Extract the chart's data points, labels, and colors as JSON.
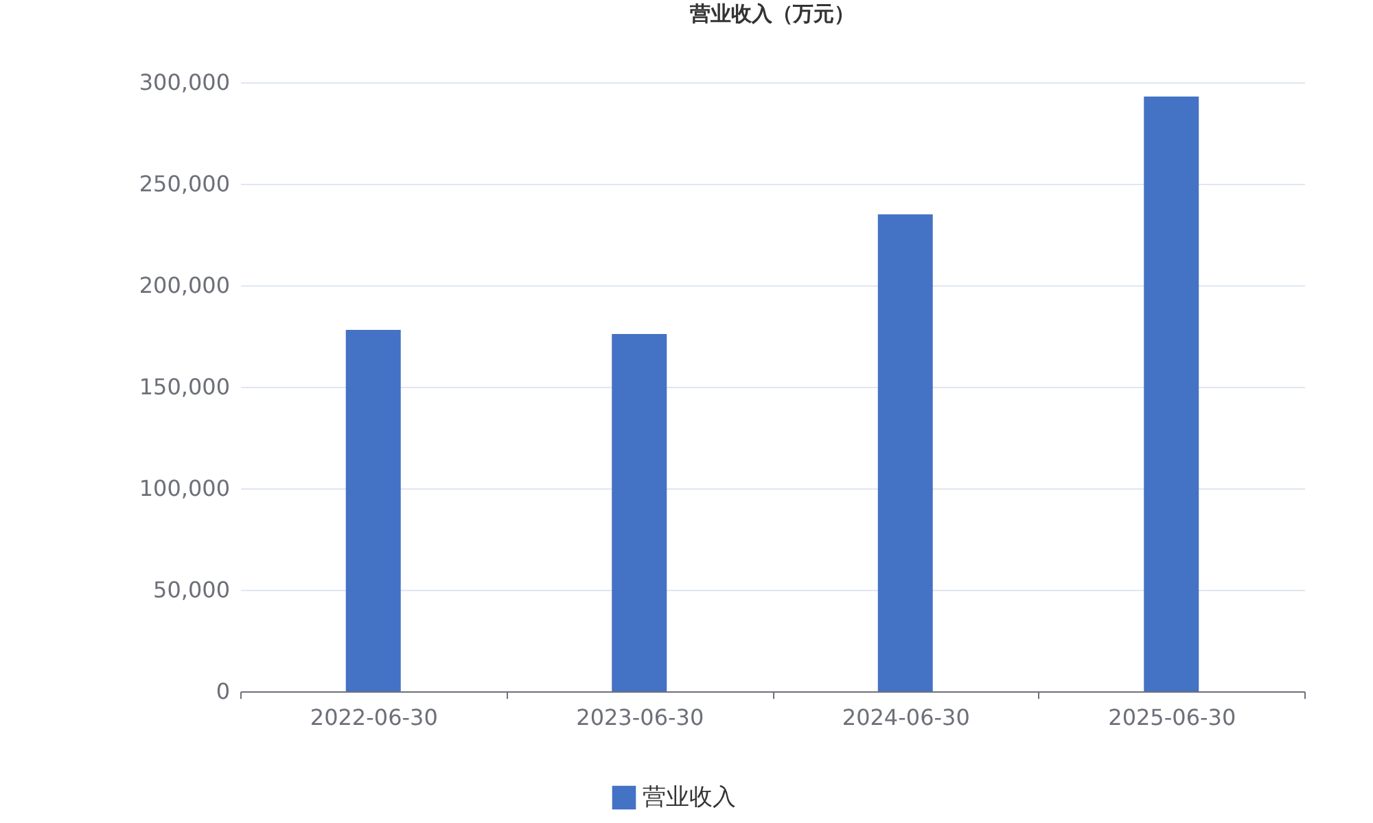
{
  "chart_data": {
    "type": "bar",
    "title": "营业收入（万元）",
    "categories": [
      "2022-06-30",
      "2023-06-30",
      "2024-06-30",
      "2025-06-30"
    ],
    "series": [
      {
        "name": "营业收入",
        "color": "#4472c4",
        "values": [
          178000,
          176000,
          235000,
          293000
        ]
      }
    ],
    "ylim": [
      0,
      300000
    ],
    "yticks": [
      0,
      {
        "value": 50000,
        "label": "50,000"
      },
      {
        "value": 100000,
        "label": "100,000"
      },
      {
        "value": 150000,
        "label": "150,000"
      },
      {
        "value": 200000,
        "label": "200,000"
      },
      {
        "value": 250000,
        "label": "250,000"
      },
      {
        "value": 300000,
        "label": "300,000"
      }
    ],
    "grid": "y",
    "legend": "bottom"
  }
}
